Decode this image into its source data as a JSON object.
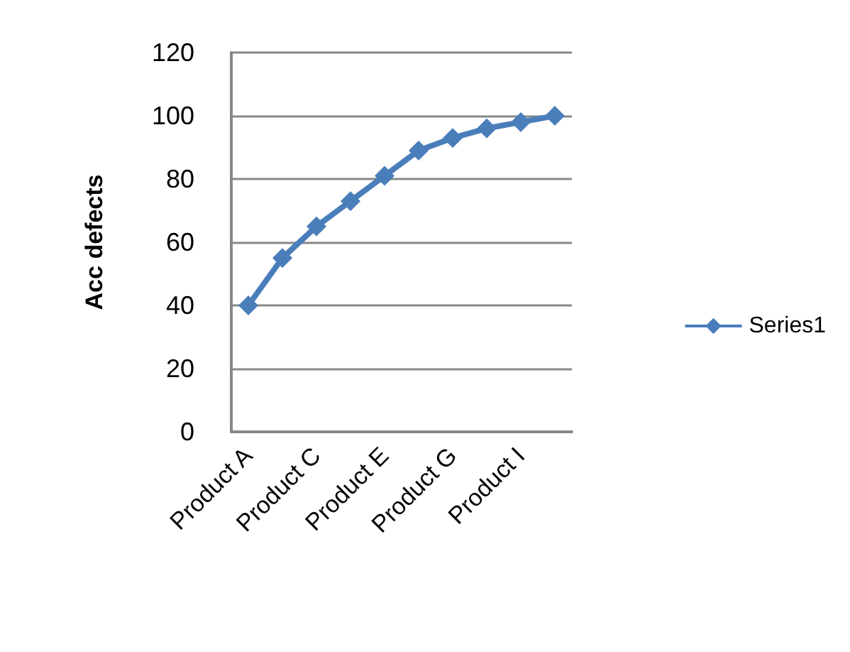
{
  "chart_data": {
    "type": "line",
    "ylabel": "Acc defects",
    "categories": [
      "Product A",
      null,
      "Product C",
      null,
      "Product E",
      null,
      "Product G",
      null,
      "Product I",
      null
    ],
    "series": [
      {
        "name": "Series1",
        "color": "#4a7ebb",
        "values": [
          40,
          55,
          65,
          73,
          81,
          89,
          93,
          96,
          98,
          100
        ]
      }
    ],
    "ylim": [
      0,
      120
    ],
    "yticks": [
      0,
      20,
      40,
      60,
      80,
      100,
      120
    ],
    "grid": "y",
    "legend": "right",
    "marker": "diamond",
    "line_style": "solid"
  }
}
